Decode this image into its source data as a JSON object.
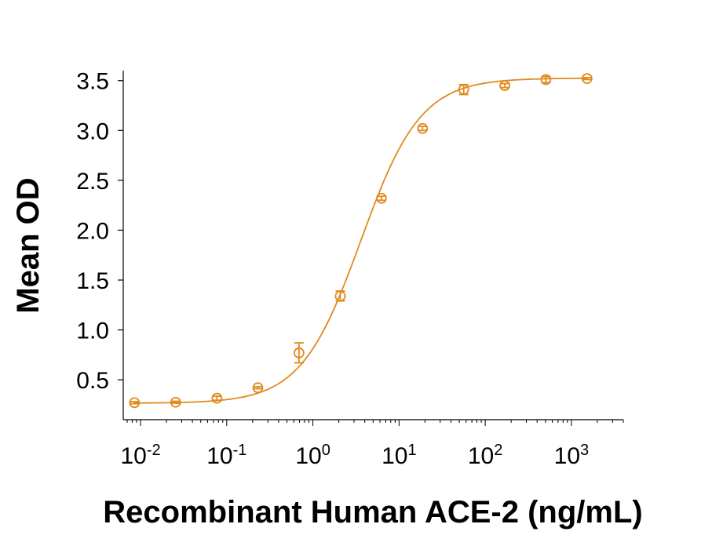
{
  "chart_data": {
    "type": "scatter",
    "title": "",
    "xlabel": "Recombinant Human ACE-2 (ng/mL)",
    "ylabel": "Mean OD",
    "x_scale": "log",
    "xlim": [
      0.0063,
      4000
    ],
    "ylim": [
      0.1,
      3.6
    ],
    "x_ticks": [
      {
        "value": 0.01,
        "base": "10",
        "exp": "-2"
      },
      {
        "value": 0.1,
        "base": "10",
        "exp": "-1"
      },
      {
        "value": 1,
        "base": "10",
        "exp": "0"
      },
      {
        "value": 10,
        "base": "10",
        "exp": "1"
      },
      {
        "value": 100,
        "base": "10",
        "exp": "2"
      },
      {
        "value": 1000,
        "base": "10",
        "exp": "3"
      }
    ],
    "y_ticks": [
      "0.5",
      "1.0",
      "1.5",
      "2.0",
      "2.5",
      "3.0",
      "3.5"
    ],
    "grid": false,
    "legend": "none",
    "color": "#E08A1E",
    "series": [
      {
        "x": [
          0.0085,
          0.0256,
          0.077,
          0.23,
          0.69,
          2.08,
          6.25,
          18.75,
          56.25,
          168.75,
          506,
          1519
        ],
        "y": [
          0.27,
          0.275,
          0.315,
          0.42,
          0.77,
          1.34,
          2.32,
          3.02,
          3.41,
          3.45,
          3.51,
          3.52
        ],
        "y_err": [
          0.01,
          0.01,
          0.02,
          0.01,
          0.1,
          0.05,
          0.02,
          0.02,
          0.05,
          0.02,
          0.03,
          0.01
        ]
      }
    ],
    "fit": {
      "type": "4PL",
      "bottom": 0.265,
      "top": 3.525,
      "ec50": 3.6,
      "hill": 1.25
    }
  }
}
